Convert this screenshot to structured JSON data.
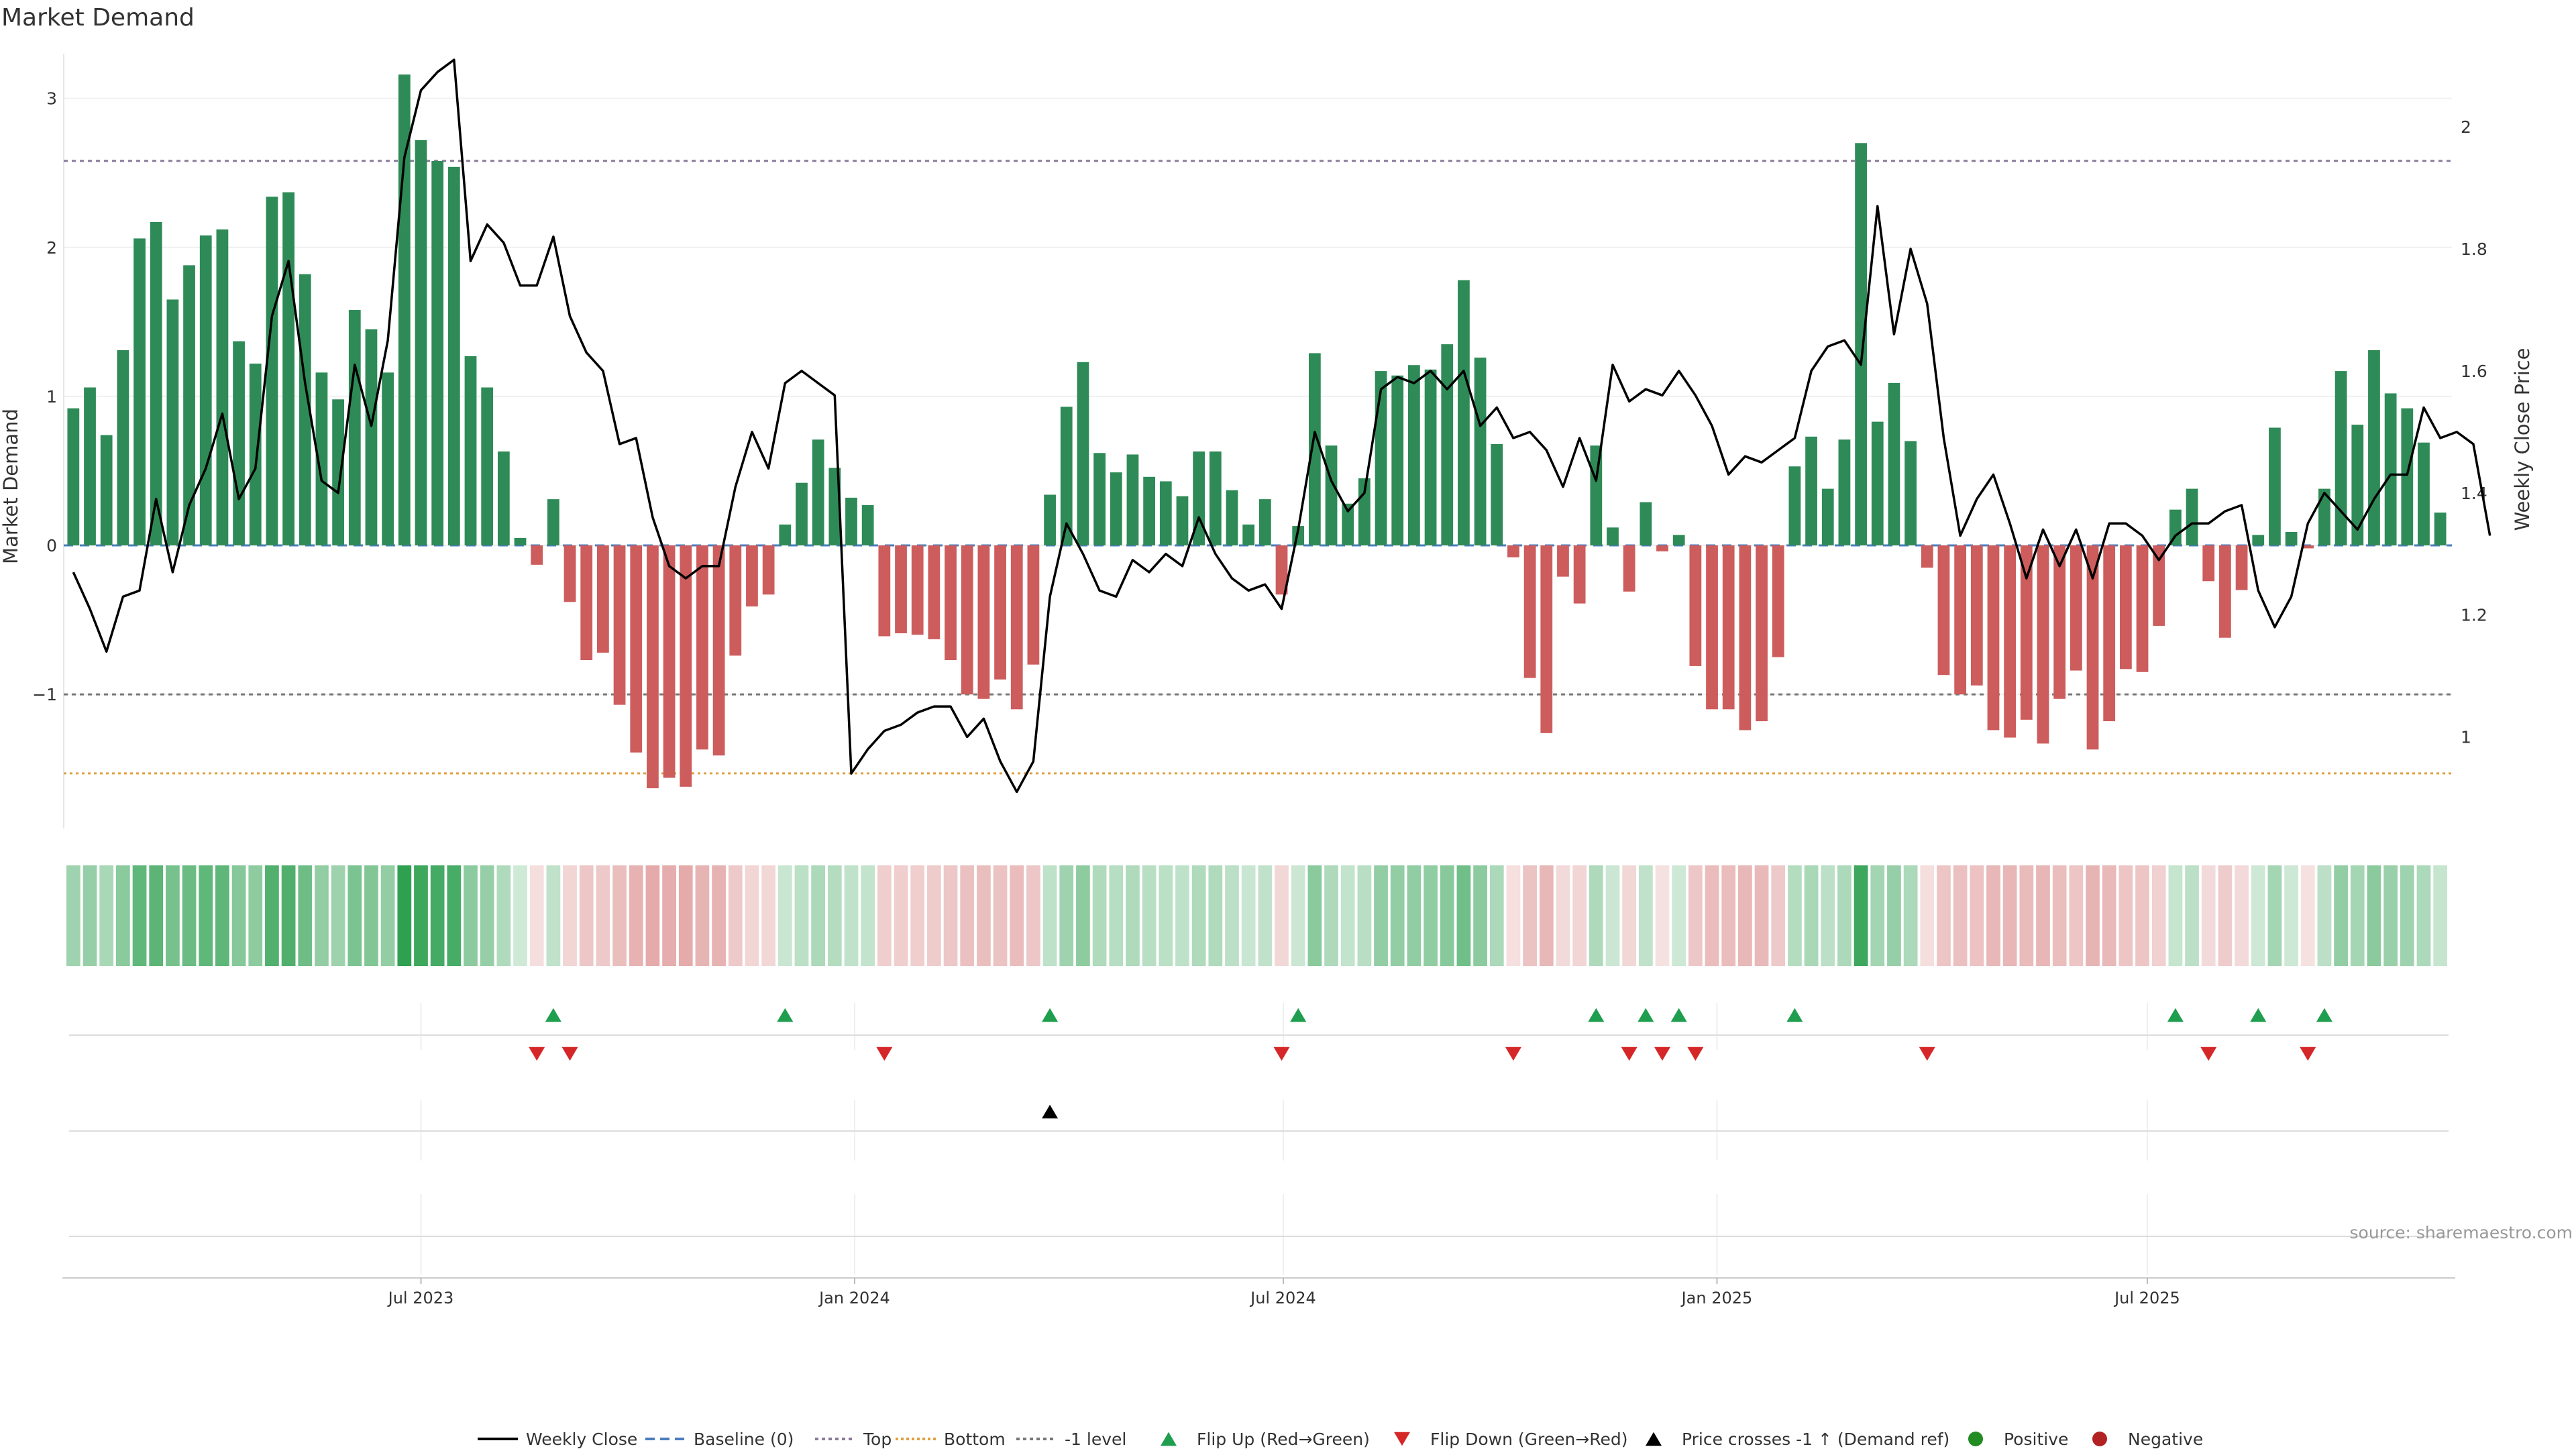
{
  "chart_data": {
    "type": "bar",
    "title": "Market Demand",
    "ylabel_left": "Market Demand",
    "ylabel_right": "Weekly Close Price",
    "source": "source: sharemaestro.com",
    "y_left_ticks": [
      {
        "v": 3,
        "label": "3"
      },
      {
        "v": 2,
        "label": "2"
      },
      {
        "v": 1,
        "label": "1"
      },
      {
        "v": 0,
        "label": "0"
      },
      {
        "v": -1,
        "label": "−1"
      }
    ],
    "y_right_ticks": [
      {
        "v": 2.0,
        "label": "2"
      },
      {
        "v": 1.8,
        "label": "1.8"
      },
      {
        "v": 1.6,
        "label": "1.6"
      },
      {
        "v": 1.4,
        "label": "1.4"
      },
      {
        "v": 1.2,
        "label": "1.2"
      },
      {
        "v": 1.0,
        "label": "1"
      }
    ],
    "x_ticks": [
      {
        "week": 21.5,
        "label": "Jul 2023"
      },
      {
        "week": 47.7,
        "label": "Jan 2024"
      },
      {
        "week": 73.6,
        "label": "Jul 2024"
      },
      {
        "week": 99.8,
        "label": "Jan 2025"
      },
      {
        "week": 125.8,
        "label": "Jul 2025"
      }
    ],
    "levels": {
      "top": 2.58,
      "bottom": -1.53,
      "minus_one": -1.0,
      "baseline": 0
    },
    "ylim_left": [
      -1.9,
      3.3
    ],
    "ylim_right": [
      0.85,
      2.12
    ],
    "demand": [
      0.92,
      1.06,
      0.74,
      1.31,
      2.06,
      2.17,
      1.65,
      1.88,
      2.08,
      2.12,
      1.37,
      1.22,
      2.34,
      2.37,
      1.82,
      1.16,
      0.98,
      1.58,
      1.45,
      1.16,
      3.16,
      2.72,
      2.58,
      2.54,
      1.27,
      1.06,
      0.63,
      0.05,
      -0.13,
      0.31,
      -0.38,
      -0.77,
      -0.72,
      -1.07,
      -1.39,
      -1.63,
      -1.56,
      -1.62,
      -1.37,
      -1.41,
      -0.74,
      -0.41,
      -0.33,
      0.14,
      0.42,
      0.71,
      0.52,
      0.32,
      0.27,
      -0.61,
      -0.59,
      -0.6,
      -0.63,
      -0.77,
      -1.0,
      -1.03,
      -0.9,
      -1.1,
      -0.8,
      0.34,
      0.93,
      1.23,
      0.62,
      0.49,
      0.61,
      0.46,
      0.43,
      0.33,
      0.63,
      0.63,
      0.37,
      0.14,
      0.31,
      -0.33,
      0.13,
      1.29,
      0.67,
      0.28,
      0.45,
      1.17,
      1.14,
      1.21,
      1.18,
      1.35,
      1.78,
      1.26,
      0.68,
      -0.08,
      -0.89,
      -1.26,
      -0.21,
      -0.39,
      0.67,
      0.12,
      -0.31,
      0.29,
      -0.04,
      0.07,
      -0.81,
      -1.1,
      -1.1,
      -1.24,
      -1.18,
      -0.75,
      0.53,
      0.73,
      0.38,
      0.71,
      2.7,
      0.83,
      1.09,
      0.7,
      -0.15,
      -0.87,
      -1.0,
      -0.94,
      -1.24,
      -1.29,
      -1.17,
      -1.33,
      -1.03,
      -0.84,
      -1.37,
      -1.18,
      -0.83,
      -0.85,
      -0.54,
      0.24,
      0.38,
      -0.24,
      -0.62,
      -0.3,
      0.07,
      0.79,
      0.09,
      -0.02,
      0.38,
      1.17,
      0.81,
      1.31,
      1.02,
      0.92,
      0.69,
      0.22
    ],
    "close": [
      1.27,
      1.21,
      1.14,
      1.23,
      1.24,
      1.39,
      1.27,
      1.38,
      1.44,
      1.53,
      1.39,
      1.44,
      1.69,
      1.78,
      1.58,
      1.42,
      1.4,
      1.61,
      1.51,
      1.65,
      1.95,
      2.06,
      2.09,
      2.11,
      1.78,
      1.84,
      1.81,
      1.74,
      1.74,
      1.82,
      1.69,
      1.63,
      1.6,
      1.48,
      1.49,
      1.36,
      1.28,
      1.26,
      1.28,
      1.28,
      1.41,
      1.5,
      1.44,
      1.58,
      1.6,
      1.58,
      1.56,
      0.94,
      0.98,
      1.01,
      1.02,
      1.04,
      1.05,
      1.05,
      1.0,
      1.03,
      0.96,
      0.91,
      0.96,
      1.23,
      1.35,
      1.3,
      1.24,
      1.23,
      1.29,
      1.27,
      1.3,
      1.28,
      1.36,
      1.3,
      1.26,
      1.24,
      1.25,
      1.21,
      1.34,
      1.5,
      1.42,
      1.37,
      1.4,
      1.57,
      1.59,
      1.58,
      1.6,
      1.57,
      1.6,
      1.51,
      1.54,
      1.49,
      1.5,
      1.47,
      1.41,
      1.49,
      1.42,
      1.61,
      1.55,
      1.57,
      1.56,
      1.6,
      1.56,
      1.51,
      1.43,
      1.46,
      1.45,
      1.47,
      1.49,
      1.6,
      1.64,
      1.65,
      1.61,
      1.87,
      1.66,
      1.8,
      1.71,
      1.49,
      1.33,
      1.39,
      1.43,
      1.35,
      1.26,
      1.34,
      1.28,
      1.34,
      1.26,
      1.35,
      1.35,
      1.33,
      1.29,
      1.33,
      1.35,
      1.35,
      1.37,
      1.38,
      1.24,
      1.18,
      1.23,
      1.35,
      1.4,
      1.37,
      1.34,
      1.39,
      1.43,
      1.43,
      1.54,
      1.49,
      1.5,
      1.48,
      1.33
    ],
    "flip_up_weeks": [
      29,
      43,
      59,
      74,
      92,
      95,
      97,
      104,
      127,
      132,
      136
    ],
    "flip_down_weeks": [
      28,
      30,
      49,
      73,
      87,
      94,
      96,
      98,
      112,
      129,
      135
    ],
    "price_cross_weeks": [
      59
    ],
    "legend": [
      {
        "key": "line",
        "label": "Weekly Close"
      },
      {
        "key": "baseline",
        "label": "Baseline (0)"
      },
      {
        "key": "top",
        "label": "Top"
      },
      {
        "key": "bottom",
        "label": "Bottom"
      },
      {
        "key": "minus1",
        "label": "-1 level"
      },
      {
        "key": "flipup",
        "label": "Flip Up (Red→Green)"
      },
      {
        "key": "flipdown",
        "label": "Flip Down (Green→Red)"
      },
      {
        "key": "cross",
        "label": "Price crosses -1 ↑ (Demand ref)"
      },
      {
        "key": "positive",
        "label": "Positive"
      },
      {
        "key": "negative",
        "label": "Negative"
      }
    ],
    "colors": {
      "positive_bar": "#2e8b57",
      "negative_bar": "#cd5c5c",
      "line": "#000000",
      "baseline": "#4a7dbf",
      "top": "#8a7a9a",
      "bottom": "#e0a040",
      "minus_one": "#777777",
      "flip_up": "#1f9e4f",
      "flip_down": "#d62728",
      "cross": "#000000",
      "positive_dot": "#228b22",
      "negative_dot": "#b22222"
    }
  }
}
